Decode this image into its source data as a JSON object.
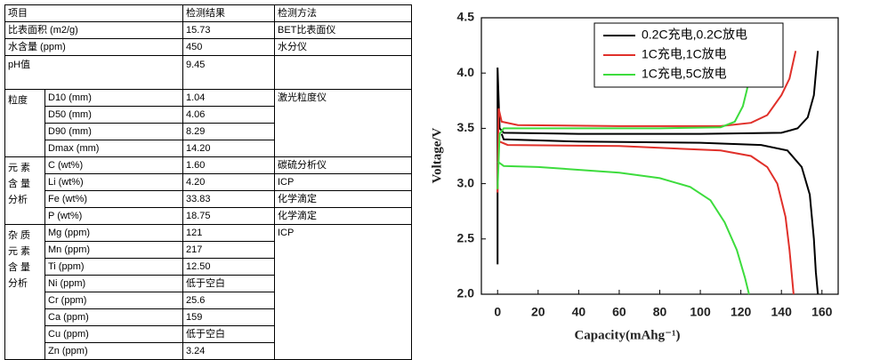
{
  "table": {
    "header": [
      "项目",
      "检测结果",
      "检测方法"
    ],
    "rows": [
      {
        "item": "比表面积 (m2/g)",
        "result": "15.73",
        "method": "BET比表面仪"
      },
      {
        "item": "水含量 (ppm)",
        "result": "450",
        "method": "水分仪"
      },
      {
        "item": "pH值",
        "result": "9.45"
      }
    ],
    "groups": [
      {
        "label": "粒度",
        "method": "激光粒度仪",
        "items": [
          {
            "item": "D10 (mm)",
            "result": "1.04"
          },
          {
            "item": "D50 (mm)",
            "result": "4.06"
          },
          {
            "item": "D90 (mm)",
            "result": "8.29"
          },
          {
            "item": "Dmax (mm)",
            "result": "14.20"
          }
        ]
      },
      {
        "label": "元 素\n含 量\n分析",
        "items": [
          {
            "item": "C (wt%)",
            "result": "1.60",
            "method": "碳硫分析仪"
          },
          {
            "item": "Li (wt%)",
            "result": "4.20",
            "method": "ICP"
          },
          {
            "item": "Fe (wt%)",
            "result": "33.83",
            "method": "化学滴定"
          },
          {
            "item": "P (wt%)",
            "result": "18.75",
            "method": "化学滴定"
          }
        ]
      },
      {
        "label": "杂 质\n元 素\n含 量\n分析",
        "method": "ICP",
        "items": [
          {
            "item": "Mg (ppm)",
            "result": "121"
          },
          {
            "item": "Mn (ppm)",
            "result": "217"
          },
          {
            "item": "Ti (ppm)",
            "result": "12.50"
          },
          {
            "item": "Ni (ppm)",
            "result": "低于空白"
          },
          {
            "item": "Cr (ppm)",
            "result": "25.6"
          },
          {
            "item": "Ca (ppm)",
            "result": "159"
          },
          {
            "item": "Cu (ppm)",
            "result": "低于空白"
          },
          {
            "item": "Zn (ppm)",
            "result": "3.24"
          }
        ]
      }
    ]
  },
  "chart_data": {
    "type": "line",
    "x_label": "Capacity(mAhg⁻¹)",
    "y_label": "Voltage/V",
    "xlim": [
      -8,
      168
    ],
    "xticks": [
      0,
      20,
      40,
      60,
      80,
      100,
      120,
      140,
      160
    ],
    "ylim": [
      2.0,
      4.5
    ],
    "yticks": [
      {
        "value": 2,
        "label": "2.0"
      },
      2.5,
      {
        "value": 3,
        "label": "3.0"
      },
      3.5,
      {
        "value": 4,
        "label": "4.0"
      },
      4.5
    ],
    "legend": "top-right",
    "series": [
      {
        "name": "0.2C充电,0.2C放电",
        "color": "#000000",
        "x": [
          0,
          0,
          1,
          3,
          40,
          100,
          140,
          148,
          153,
          156,
          158,
          null,
          2,
          3,
          40,
          100,
          130,
          143,
          150,
          154,
          156,
          157,
          158
        ],
        "values": [
          2.27,
          4.05,
          3.5,
          3.46,
          3.45,
          3.45,
          3.46,
          3.5,
          3.6,
          3.8,
          4.2,
          null,
          3.45,
          3.4,
          3.38,
          3.37,
          3.35,
          3.3,
          3.15,
          2.9,
          2.5,
          2.2,
          2.0
        ]
      },
      {
        "name": "1C充电,1C放电",
        "color": "#e0302a",
        "x": [
          0,
          0.5,
          2,
          10,
          60,
          110,
          125,
          133,
          140,
          144,
          147,
          null,
          1,
          5,
          60,
          110,
          125,
          133,
          138,
          142,
          144,
          146
        ],
        "values": [
          2.92,
          3.68,
          3.56,
          3.53,
          3.52,
          3.52,
          3.55,
          3.62,
          3.8,
          3.95,
          4.2,
          null,
          3.38,
          3.35,
          3.34,
          3.3,
          3.25,
          3.15,
          3.0,
          2.7,
          2.4,
          2.0
        ]
      },
      {
        "name": "1C充电,5C放电",
        "color": "#3ddc3d",
        "x": [
          0,
          1,
          3,
          20,
          80,
          110,
          117,
          121,
          123,
          124,
          null,
          0,
          3,
          20,
          60,
          80,
          95,
          105,
          112,
          118,
          122,
          124
        ],
        "values": [
          2.95,
          3.45,
          3.5,
          3.5,
          3.5,
          3.51,
          3.56,
          3.7,
          3.85,
          3.95,
          null,
          3.2,
          3.16,
          3.15,
          3.1,
          3.05,
          2.97,
          2.85,
          2.65,
          2.4,
          2.15,
          2.0
        ]
      }
    ]
  }
}
